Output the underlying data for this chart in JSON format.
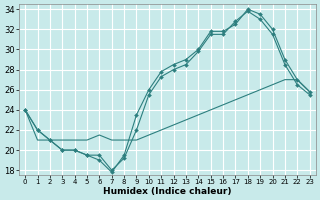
{
  "xlabel": "Humidex (Indice chaleur)",
  "bg_color": "#c8eaea",
  "grid_color": "#ffffff",
  "line_color": "#2d7f7f",
  "xlim": [
    -0.5,
    23.5
  ],
  "ylim": [
    17.5,
    34.5
  ],
  "xticks": [
    0,
    1,
    2,
    3,
    4,
    5,
    6,
    7,
    8,
    9,
    10,
    11,
    12,
    13,
    14,
    15,
    16,
    17,
    18,
    19,
    20,
    21,
    22,
    23
  ],
  "yticks": [
    18,
    20,
    22,
    24,
    26,
    28,
    30,
    32,
    34
  ],
  "series": [
    {
      "x": [
        0,
        1,
        2,
        3,
        4,
        5,
        6,
        7,
        8,
        9,
        10,
        11,
        12,
        13,
        14,
        15,
        16,
        17,
        18,
        19,
        20,
        21,
        22,
        23
      ],
      "y": [
        24,
        22,
        21,
        20,
        20,
        19.5,
        19,
        17.8,
        19.5,
        23.5,
        26,
        27.8,
        28.5,
        29,
        30,
        31.8,
        31.8,
        32.5,
        34,
        33.5,
        32,
        29,
        27,
        25.8
      ],
      "marker": true
    },
    {
      "x": [
        0,
        1,
        2,
        3,
        4,
        5,
        6,
        7,
        8,
        9,
        10,
        11,
        12,
        13,
        14,
        15,
        16,
        17,
        18,
        19,
        20,
        21,
        22,
        23
      ],
      "y": [
        24,
        22,
        21,
        20,
        20,
        19.5,
        19.5,
        18,
        19.2,
        22,
        25.5,
        27.3,
        28,
        28.5,
        29.8,
        31.5,
        31.5,
        32.8,
        33.8,
        33,
        31.5,
        28.5,
        26.5,
        25.5
      ],
      "marker": true
    },
    {
      "x": [
        0,
        1,
        2,
        3,
        4,
        5,
        6,
        7,
        8,
        9,
        10,
        11,
        12,
        13,
        14,
        15,
        16,
        17,
        18,
        19,
        20,
        21,
        22,
        23
      ],
      "y": [
        24,
        21,
        21,
        21,
        21,
        21,
        21.5,
        21,
        21,
        21,
        21.5,
        22,
        22.5,
        23,
        23.5,
        24,
        24.5,
        25,
        25.5,
        26,
        26.5,
        27,
        27,
        25.8
      ],
      "marker": false
    }
  ]
}
